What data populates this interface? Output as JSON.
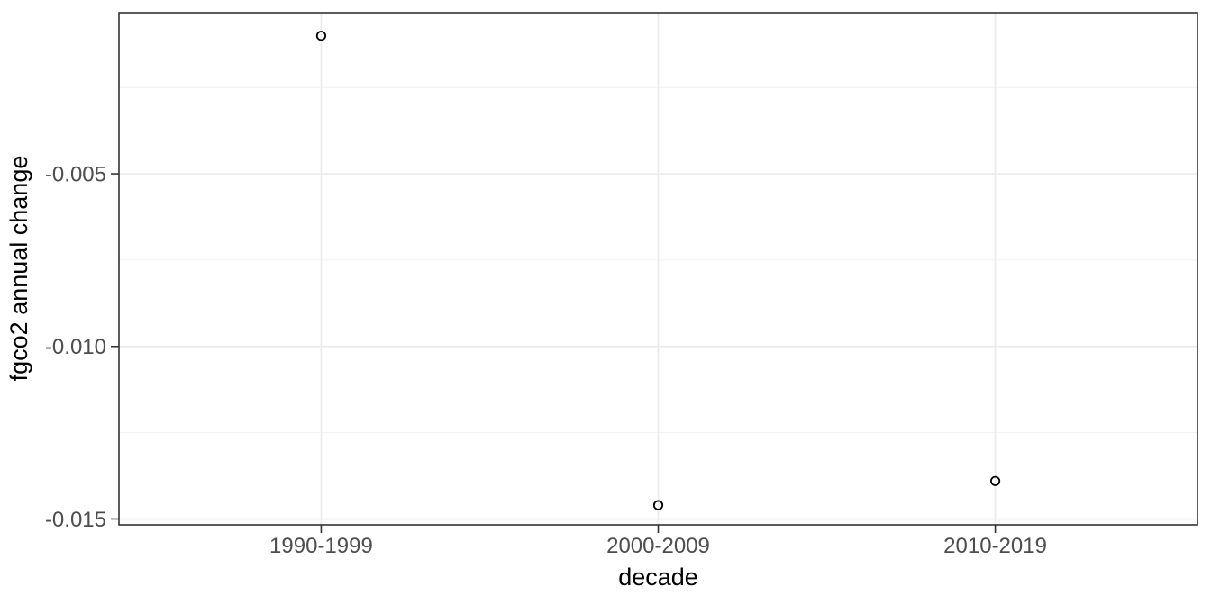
{
  "chart_data": {
    "type": "scatter",
    "title": "",
    "xlabel": "decade",
    "ylabel": "fgco2 annual change",
    "categories": [
      "1990-1999",
      "2000-2009",
      "2010-2019"
    ],
    "series": [
      {
        "name": "fgco2 annual change",
        "values": [
          -0.001,
          -0.0146,
          -0.0139
        ]
      }
    ],
    "y_ticks": [
      {
        "value": -0.005,
        "label": "-0.005"
      },
      {
        "value": -0.01,
        "label": "-0.010"
      },
      {
        "value": -0.015,
        "label": "-0.015"
      }
    ],
    "y_minor_ticks": [
      -0.0025,
      -0.0075,
      -0.0125
    ],
    "ylim": [
      -0.01517,
      -0.00033
    ],
    "x_expand": 0.6,
    "grid": "major-and-minor-horizontal, major-vertical",
    "legend_position": "none",
    "point_style": "open-circle",
    "colors": {
      "background": "#ffffff",
      "panel_border": "#333333",
      "grid_major": "#ebebeb",
      "grid_minor": "#f0f0f0",
      "tick": "#333333",
      "tick_label": "#4d4d4d",
      "axis_title": "#000000",
      "point": "#000000"
    }
  }
}
